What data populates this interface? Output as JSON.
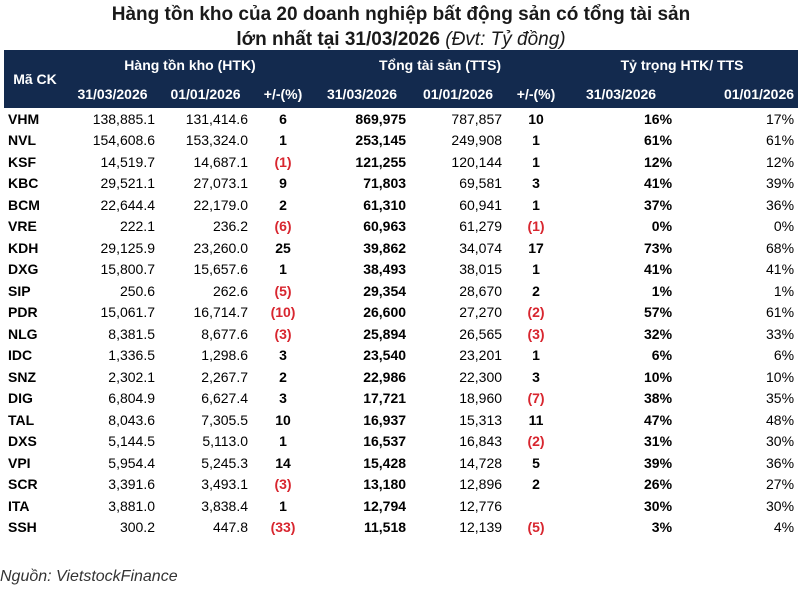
{
  "title": {
    "line1": "Hàng tồn kho của 20 doanh nghiệp bất động sản có tổng tài sản",
    "line2": "lớn nhất tại 31/03/2026",
    "unit": "(Đvt: Tỷ đồng)"
  },
  "header": {
    "code": "Mã CK",
    "group_htk": "Hàng tồn kho (HTK)",
    "group_tts": "Tổng tài sản (TTS)",
    "group_ratio": "Tỷ trọng HTK/ TTS",
    "date_q": "31/03/2026",
    "date_y": "01/01/2026",
    "change": "+/-(%)"
  },
  "rows": [
    {
      "code": "VHM",
      "htk_q": "138,885.1",
      "htk_y": "131,414.6",
      "htk_chg": "6",
      "htk_neg": false,
      "tts_q": "869,975",
      "tts_y": "787,857",
      "tts_chg": "10",
      "tts_neg": false,
      "r_q": "16%",
      "r_y": "17%"
    },
    {
      "code": "NVL",
      "htk_q": "154,608.6",
      "htk_y": "153,324.0",
      "htk_chg": "1",
      "htk_neg": false,
      "tts_q": "253,145",
      "tts_y": "249,908",
      "tts_chg": "1",
      "tts_neg": false,
      "r_q": "61%",
      "r_y": "61%"
    },
    {
      "code": "KSF",
      "htk_q": "14,519.7",
      "htk_y": "14,687.1",
      "htk_chg": "(1)",
      "htk_neg": true,
      "tts_q": "121,255",
      "tts_y": "120,144",
      "tts_chg": "1",
      "tts_neg": false,
      "r_q": "12%",
      "r_y": "12%"
    },
    {
      "code": "KBC",
      "htk_q": "29,521.1",
      "htk_y": "27,073.1",
      "htk_chg": "9",
      "htk_neg": false,
      "tts_q": "71,803",
      "tts_y": "69,581",
      "tts_chg": "3",
      "tts_neg": false,
      "r_q": "41%",
      "r_y": "39%"
    },
    {
      "code": "BCM",
      "htk_q": "22,644.4",
      "htk_y": "22,179.0",
      "htk_chg": "2",
      "htk_neg": false,
      "tts_q": "61,310",
      "tts_y": "60,941",
      "tts_chg": "1",
      "tts_neg": false,
      "r_q": "37%",
      "r_y": "36%"
    },
    {
      "code": "VRE",
      "htk_q": "222.1",
      "htk_y": "236.2",
      "htk_chg": "(6)",
      "htk_neg": true,
      "tts_q": "60,963",
      "tts_y": "61,279",
      "tts_chg": "(1)",
      "tts_neg": true,
      "r_q": "0%",
      "r_y": "0%"
    },
    {
      "code": "KDH",
      "htk_q": "29,125.9",
      "htk_y": "23,260.0",
      "htk_chg": "25",
      "htk_neg": false,
      "tts_q": "39,862",
      "tts_y": "34,074",
      "tts_chg": "17",
      "tts_neg": false,
      "r_q": "73%",
      "r_y": "68%"
    },
    {
      "code": "DXG",
      "htk_q": "15,800.7",
      "htk_y": "15,657.6",
      "htk_chg": "1",
      "htk_neg": false,
      "tts_q": "38,493",
      "tts_y": "38,015",
      "tts_chg": "1",
      "tts_neg": false,
      "r_q": "41%",
      "r_y": "41%"
    },
    {
      "code": "SIP",
      "htk_q": "250.6",
      "htk_y": "262.6",
      "htk_chg": "(5)",
      "htk_neg": true,
      "tts_q": "29,354",
      "tts_y": "28,670",
      "tts_chg": "2",
      "tts_neg": false,
      "r_q": "1%",
      "r_y": "1%"
    },
    {
      "code": "PDR",
      "htk_q": "15,061.7",
      "htk_y": "16,714.7",
      "htk_chg": "(10)",
      "htk_neg": true,
      "tts_q": "26,600",
      "tts_y": "27,270",
      "tts_chg": "(2)",
      "tts_neg": true,
      "r_q": "57%",
      "r_y": "61%"
    },
    {
      "code": "NLG",
      "htk_q": "8,381.5",
      "htk_y": "8,677.6",
      "htk_chg": "(3)",
      "htk_neg": true,
      "tts_q": "25,894",
      "tts_y": "26,565",
      "tts_chg": "(3)",
      "tts_neg": true,
      "r_q": "32%",
      "r_y": "33%"
    },
    {
      "code": "IDC",
      "htk_q": "1,336.5",
      "htk_y": "1,298.6",
      "htk_chg": "3",
      "htk_neg": false,
      "tts_q": "23,540",
      "tts_y": "23,201",
      "tts_chg": "1",
      "tts_neg": false,
      "r_q": "6%",
      "r_y": "6%"
    },
    {
      "code": "SNZ",
      "htk_q": "2,302.1",
      "htk_y": "2,267.7",
      "htk_chg": "2",
      "htk_neg": false,
      "tts_q": "22,986",
      "tts_y": "22,300",
      "tts_chg": "3",
      "tts_neg": false,
      "r_q": "10%",
      "r_y": "10%"
    },
    {
      "code": "DIG",
      "htk_q": "6,804.9",
      "htk_y": "6,627.4",
      "htk_chg": "3",
      "htk_neg": false,
      "tts_q": "17,721",
      "tts_y": "18,960",
      "tts_chg": "(7)",
      "tts_neg": true,
      "r_q": "38%",
      "r_y": "35%"
    },
    {
      "code": "TAL",
      "htk_q": "8,043.6",
      "htk_y": "7,305.5",
      "htk_chg": "10",
      "htk_neg": false,
      "tts_q": "16,937",
      "tts_y": "15,313",
      "tts_chg": "11",
      "tts_neg": false,
      "r_q": "47%",
      "r_y": "48%"
    },
    {
      "code": "DXS",
      "htk_q": "5,144.5",
      "htk_y": "5,113.0",
      "htk_chg": "1",
      "htk_neg": false,
      "tts_q": "16,537",
      "tts_y": "16,843",
      "tts_chg": "(2)",
      "tts_neg": true,
      "r_q": "31%",
      "r_y": "30%"
    },
    {
      "code": "VPI",
      "htk_q": "5,954.4",
      "htk_y": "5,245.3",
      "htk_chg": "14",
      "htk_neg": false,
      "tts_q": "15,428",
      "tts_y": "14,728",
      "tts_chg": "5",
      "tts_neg": false,
      "r_q": "39%",
      "r_y": "36%"
    },
    {
      "code": "SCR",
      "htk_q": "3,391.6",
      "htk_y": "3,493.1",
      "htk_chg": "(3)",
      "htk_neg": true,
      "tts_q": "13,180",
      "tts_y": "12,896",
      "tts_chg": "2",
      "tts_neg": false,
      "r_q": "26%",
      "r_y": "27%"
    },
    {
      "code": "ITA",
      "htk_q": "3,881.0",
      "htk_y": "3,838.4",
      "htk_chg": "1",
      "htk_neg": false,
      "tts_q": "12,794",
      "tts_y": "12,776",
      "tts_chg": "",
      "tts_neg": false,
      "r_q": "30%",
      "r_y": "30%"
    },
    {
      "code": "SSH",
      "htk_q": "300.2",
      "htk_y": "447.8",
      "htk_chg": "(33)",
      "htk_neg": true,
      "tts_q": "11,518",
      "tts_y": "12,139",
      "tts_chg": "(5)",
      "tts_neg": true,
      "r_q": "3%",
      "r_y": "4%"
    }
  ],
  "source": "Nguồn: VietstockFinance",
  "colors": {
    "header_bg": "#132a4e",
    "negative": "#d8262f"
  }
}
